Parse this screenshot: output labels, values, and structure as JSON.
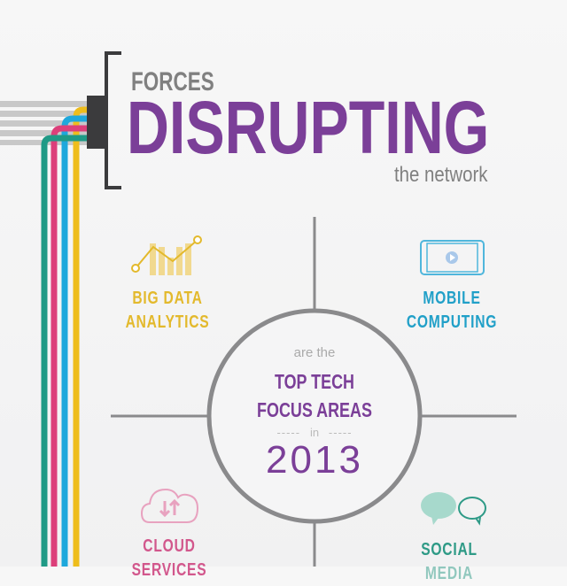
{
  "title": {
    "line1": "FORCES",
    "line2": "DISRUPTING",
    "line3": "the network"
  },
  "center": {
    "pre": "are the",
    "main1": "TOP TECH",
    "main2": "FOCUS AREAS",
    "in": "in",
    "dashes": "-----",
    "year": "2013"
  },
  "areas": [
    {
      "icon": "bar-line-chart-icon",
      "line1": "BIG DATA",
      "line2": "ANALYTICS",
      "color": "#e3b92c"
    },
    {
      "icon": "tablet-video-icon",
      "line1": "MOBILE",
      "line2": "COMPUTING",
      "color": "#21a0c8"
    },
    {
      "icon": "cloud-sync-icon",
      "line1": "CLOUD",
      "line2": "SERVICES",
      "color": "#d2578c"
    },
    {
      "icon": "speech-bubbles-icon",
      "line1": "SOCIAL",
      "line2": "MEDIA",
      "color": "#2e9a86"
    }
  ],
  "colors": {
    "purple": "#7b3f98",
    "gray": "#808080",
    "line": "#8a8a8c"
  }
}
